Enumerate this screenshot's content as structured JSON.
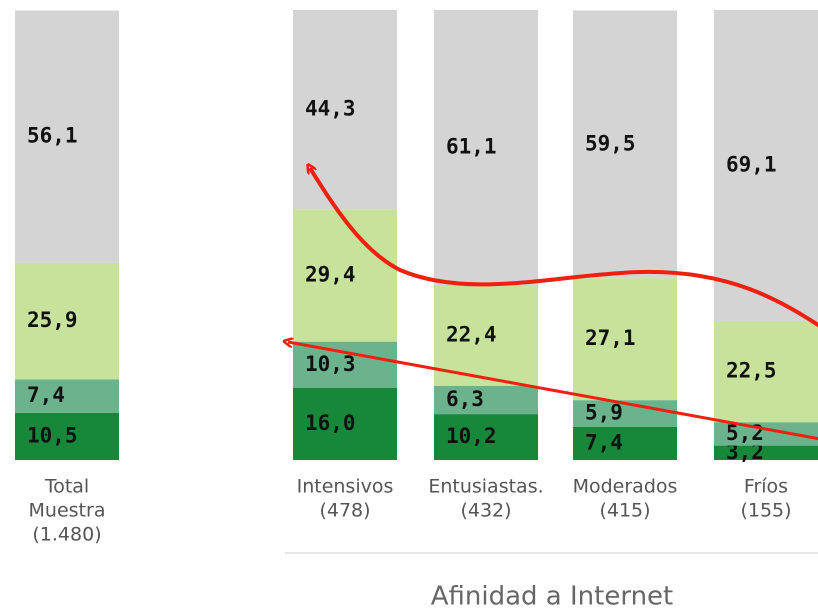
{
  "chart_data": {
    "type": "stacked_bar",
    "categories": [
      [
        "Total",
        "Muestra",
        "(1.480)"
      ],
      [
        "Intensivos",
        "(478)"
      ],
      [
        "Entusiastas.",
        "(432)"
      ],
      [
        "Moderados",
        "(415)"
      ],
      [
        "Fríos",
        "(155)"
      ]
    ],
    "x_label": "Afinidad a Internet",
    "ylim": [
      0,
      100
    ],
    "series": [
      {
        "color": "#17873a",
        "values": [
          10.5,
          16.0,
          10.2,
          7.4,
          3.2
        ],
        "value_labels": [
          "10,5",
          "16,0",
          "10,2",
          "7,4",
          "3,2"
        ]
      },
      {
        "color": "#6bb38d",
        "values": [
          7.4,
          10.3,
          6.3,
          5.9,
          5.2
        ],
        "value_labels": [
          "7,4",
          "10,3",
          "6,3",
          "5,9",
          "5,2"
        ]
      },
      {
        "color": "#c6e29b",
        "values": [
          25.9,
          29.4,
          22.4,
          27.1,
          22.5
        ],
        "value_labels": [
          "25,9",
          "29,4",
          "22,4",
          "27,1",
          "22,5"
        ]
      },
      {
        "color": "#d4d4d4",
        "values": [
          56.1,
          44.3,
          61.1,
          59.5,
          69.1
        ],
        "value_labels": [
          "56,1",
          "44,3",
          "61,1",
          "59,5",
          "69,1"
        ]
      }
    ]
  }
}
